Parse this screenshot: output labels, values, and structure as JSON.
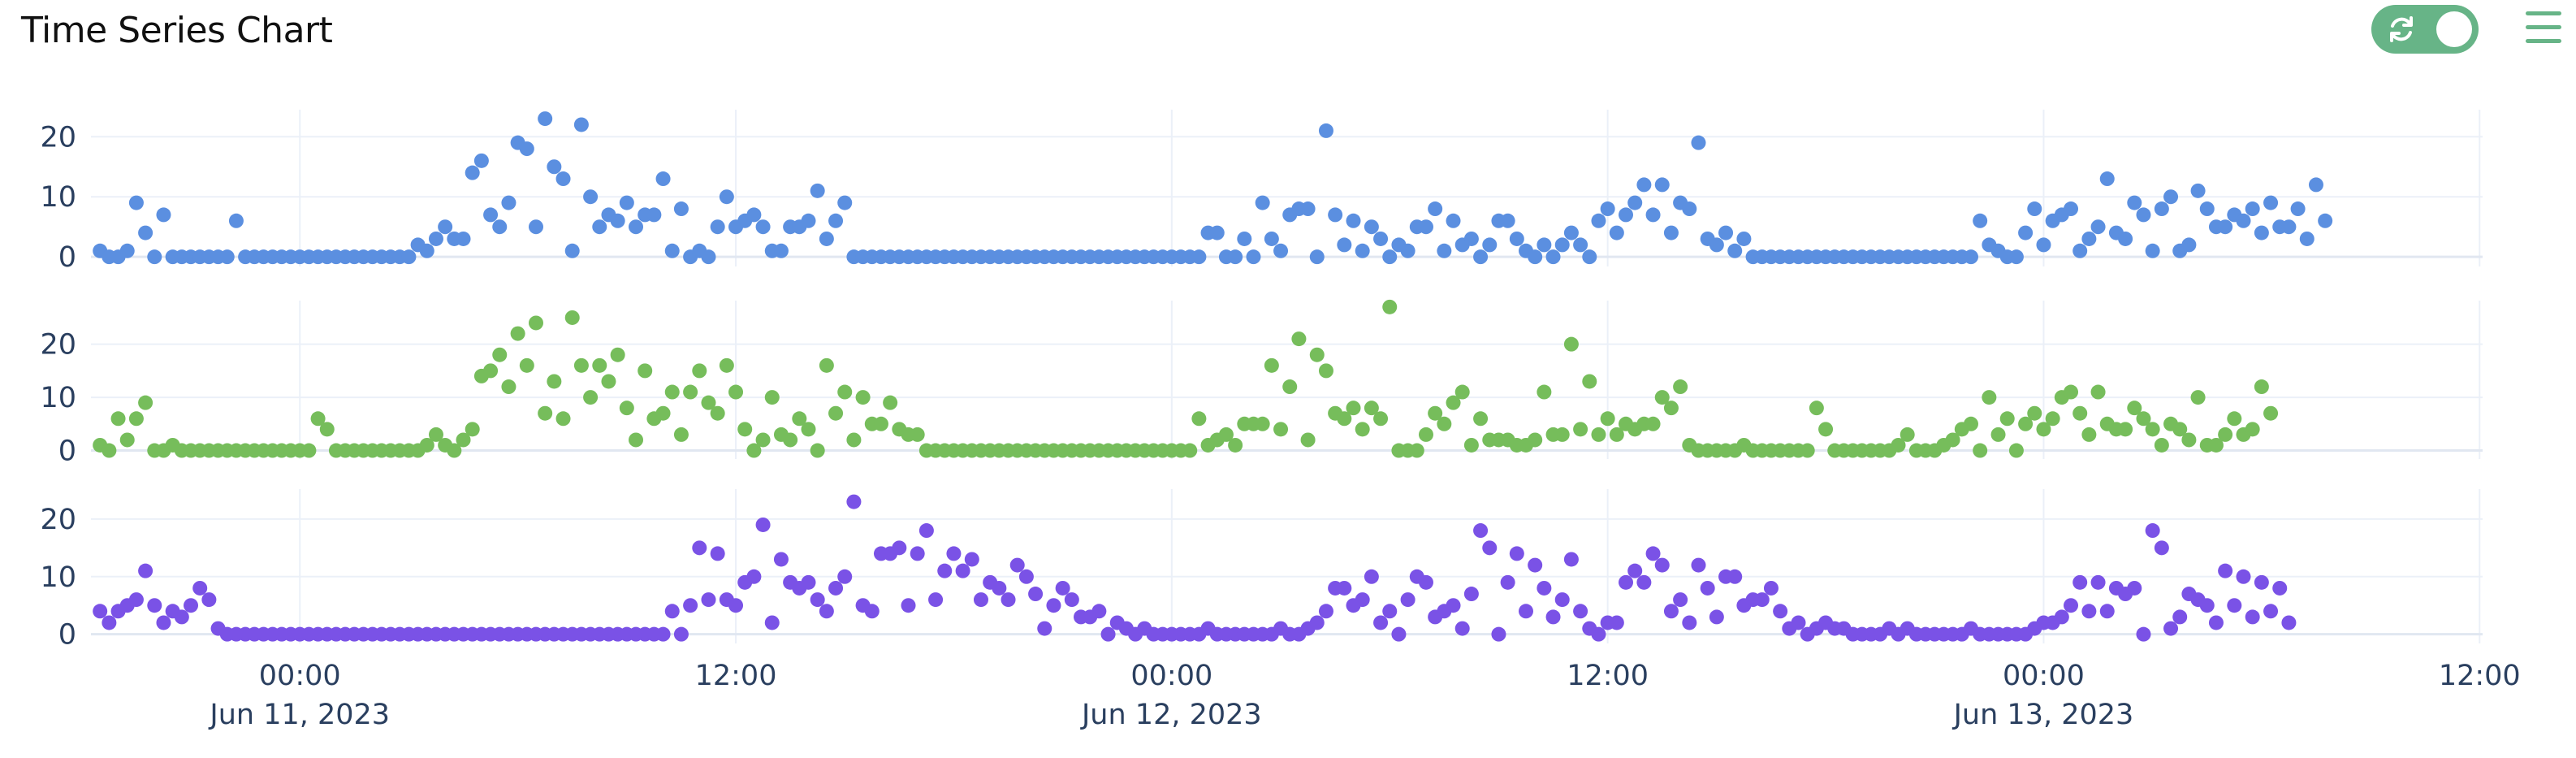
{
  "header": {
    "title": "Time Series Chart",
    "toggle_icon": "refresh-icon",
    "menu_icon": "hamburger-menu-icon",
    "accent_color": "#67b487"
  },
  "chart_data": {
    "type": "scatter",
    "x_axis": {
      "type": "date",
      "range": [
        "2023-06-10 18:15",
        "2023-06-13 12:05"
      ],
      "ticks": [
        {
          "x": "2023-06-11 00:00",
          "label": "00:00",
          "sublabel": "Jun 11, 2023"
        },
        {
          "x": "2023-06-11 12:00",
          "label": "12:00",
          "sublabel": ""
        },
        {
          "x": "2023-06-12 00:00",
          "label": "00:00",
          "sublabel": "Jun 12, 2023"
        },
        {
          "x": "2023-06-12 12:00",
          "label": "12:00",
          "sublabel": ""
        },
        {
          "x": "2023-06-13 00:00",
          "label": "00:00",
          "sublabel": "Jun 13, 2023"
        },
        {
          "x": "2023-06-13 12:00",
          "label": "12:00",
          "sublabel": ""
        }
      ]
    },
    "grid": true,
    "legend": "none",
    "start": "2023-06-10 18:30",
    "step_minutes": 15,
    "series": [
      {
        "color": "#5b8fe0",
        "ylim": [
          -1.6,
          24.5
        ],
        "yticks": [
          0,
          10,
          20
        ],
        "values": [
          1,
          0,
          0,
          1,
          9,
          4,
          0,
          7,
          0,
          0,
          0,
          0,
          0,
          0,
          0,
          6,
          0,
          0,
          0,
          0,
          0,
          0,
          0,
          0,
          0,
          0,
          0,
          0,
          0,
          0,
          0,
          0,
          0,
          0,
          0,
          2,
          1,
          3,
          5,
          3,
          3,
          14,
          16,
          7,
          5,
          9,
          19,
          18,
          5,
          23,
          15,
          13,
          1,
          22,
          10,
          5,
          7,
          6,
          9,
          5,
          7,
          7,
          13,
          1,
          8,
          0,
          1,
          0,
          5,
          10,
          5,
          6,
          7,
          5,
          1,
          1,
          5,
          5,
          6,
          11,
          3,
          6,
          9,
          0,
          0,
          0,
          0,
          0,
          0,
          0,
          0,
          0,
          0,
          0,
          0,
          0,
          0,
          0,
          0,
          0,
          0,
          0,
          0,
          0,
          0,
          0,
          0,
          0,
          0,
          0,
          0,
          0,
          0,
          0,
          0,
          0,
          0,
          0,
          0,
          0,
          0,
          0,
          4,
          4,
          0,
          0,
          3,
          0,
          9,
          3,
          1,
          7,
          8,
          8,
          0,
          21,
          7,
          2,
          6,
          1,
          5,
          3,
          0,
          2,
          1,
          5,
          5,
          8,
          1,
          6,
          2,
          3,
          0,
          2,
          6,
          6,
          3,
          1,
          0,
          2,
          0,
          2,
          4,
          2,
          0,
          6,
          8,
          4,
          7,
          9,
          12,
          7,
          12,
          4,
          9,
          8,
          19,
          3,
          2,
          4,
          1,
          3,
          0,
          0,
          0,
          0,
          0,
          0,
          0,
          0,
          0,
          0,
          0,
          0,
          0,
          0,
          0,
          0,
          0,
          0,
          0,
          0,
          0,
          0,
          0,
          0,
          0,
          6,
          2,
          1,
          0,
          0,
          4,
          8,
          2,
          6,
          7,
          8,
          1,
          3,
          5,
          13,
          4,
          3,
          9,
          7,
          1,
          8,
          10,
          1,
          2,
          11,
          8,
          5,
          5,
          7,
          6,
          8,
          4,
          9,
          5,
          5,
          8,
          3,
          12,
          6
        ]
      },
      {
        "color": "#76bd5b",
        "ylim": [
          -1.6,
          28.2
        ],
        "yticks": [
          0,
          10,
          20
        ],
        "values": [
          1,
          0,
          6,
          2,
          6,
          9,
          0,
          0,
          1,
          0,
          0,
          0,
          0,
          0,
          0,
          0,
          0,
          0,
          0,
          0,
          0,
          0,
          0,
          0,
          6,
          4,
          0,
          0,
          0,
          0,
          0,
          0,
          0,
          0,
          0,
          0,
          1,
          3,
          1,
          0,
          2,
          4,
          14,
          15,
          18,
          12,
          22,
          16,
          24,
          7,
          13,
          6,
          25,
          16,
          10,
          16,
          13,
          18,
          8,
          2,
          15,
          6,
          7,
          11,
          3,
          11,
          15,
          9,
          7,
          16,
          11,
          4,
          0,
          2,
          10,
          3,
          2,
          6,
          4,
          0,
          16,
          7,
          11,
          2,
          10,
          5,
          5,
          9,
          4,
          3,
          3,
          0,
          0,
          0,
          0,
          0,
          0,
          0,
          0,
          0,
          0,
          0,
          0,
          0,
          0,
          0,
          0,
          0,
          0,
          0,
          0,
          0,
          0,
          0,
          0,
          0,
          0,
          0,
          0,
          0,
          0,
          6,
          1,
          2,
          3,
          1,
          5,
          5,
          5,
          16,
          4,
          12,
          21,
          2,
          18,
          15,
          7,
          6,
          8,
          4,
          8,
          6,
          27,
          0,
          0,
          0,
          3,
          7,
          5,
          9,
          11,
          1,
          6,
          2,
          2,
          2,
          1,
          1,
          2,
          11,
          3,
          3,
          20,
          4,
          13,
          3,
          6,
          3,
          5,
          4,
          5,
          5,
          10,
          8,
          12,
          1,
          0,
          0,
          0,
          0,
          0,
          1,
          0,
          0,
          0,
          0,
          0,
          0,
          0,
          8,
          4,
          0,
          0,
          0,
          0,
          0,
          0,
          0,
          1,
          3,
          0,
          0,
          0,
          1,
          2,
          4,
          5,
          0,
          10,
          3,
          6,
          0,
          5,
          7,
          4,
          6,
          10,
          11,
          7,
          3,
          11,
          5,
          4,
          4,
          8,
          6,
          4,
          1,
          5,
          4,
          2,
          10,
          1,
          1,
          3,
          6,
          3,
          4,
          12,
          7
        ]
      },
      {
        "color": "#7a52e6",
        "ylim": [
          -1.6,
          25.2
        ],
        "yticks": [
          0,
          10,
          20
        ],
        "values": [
          4,
          2,
          4,
          5,
          6,
          11,
          5,
          2,
          4,
          3,
          5,
          8,
          6,
          1,
          0,
          0,
          0,
          0,
          0,
          0,
          0,
          0,
          0,
          0,
          0,
          0,
          0,
          0,
          0,
          0,
          0,
          0,
          0,
          0,
          0,
          0,
          0,
          0,
          0,
          0,
          0,
          0,
          0,
          0,
          0,
          0,
          0,
          0,
          0,
          0,
          0,
          0,
          0,
          0,
          0,
          0,
          0,
          0,
          0,
          0,
          0,
          0,
          0,
          4,
          0,
          5,
          15,
          6,
          14,
          6,
          5,
          9,
          10,
          19,
          2,
          13,
          9,
          8,
          9,
          6,
          4,
          8,
          10,
          23,
          5,
          4,
          14,
          14,
          15,
          5,
          14,
          18,
          6,
          11,
          14,
          11,
          13,
          6,
          9,
          8,
          6,
          12,
          10,
          7,
          1,
          5,
          8,
          6,
          3,
          3,
          4,
          0,
          2,
          1,
          0,
          1,
          0,
          0,
          0,
          0,
          0,
          0,
          1,
          0,
          0,
          0,
          0,
          0,
          0,
          0,
          1,
          0,
          0,
          1,
          2,
          4,
          8,
          8,
          5,
          6,
          10,
          2,
          4,
          0,
          6,
          10,
          9,
          3,
          4,
          5,
          1,
          7,
          18,
          15,
          0,
          9,
          14,
          4,
          12,
          8,
          3,
          6,
          13,
          4,
          1,
          0,
          2,
          2,
          9,
          11,
          9,
          14,
          12,
          4,
          6,
          2,
          12,
          8,
          3,
          10,
          10,
          5,
          6,
          6,
          8,
          4,
          1,
          2,
          0,
          1,
          2,
          1,
          1,
          0,
          0,
          0,
          0,
          1,
          0,
          1,
          0,
          0,
          0,
          0,
          0,
          0,
          1,
          0,
          0,
          0,
          0,
          0,
          0,
          1,
          2,
          2,
          3,
          5,
          9,
          4,
          9,
          4,
          8,
          7,
          8,
          0,
          18,
          15,
          1,
          3,
          7,
          6,
          5,
          2,
          11,
          5,
          10,
          3,
          9,
          4,
          8,
          2
        ]
      }
    ]
  }
}
